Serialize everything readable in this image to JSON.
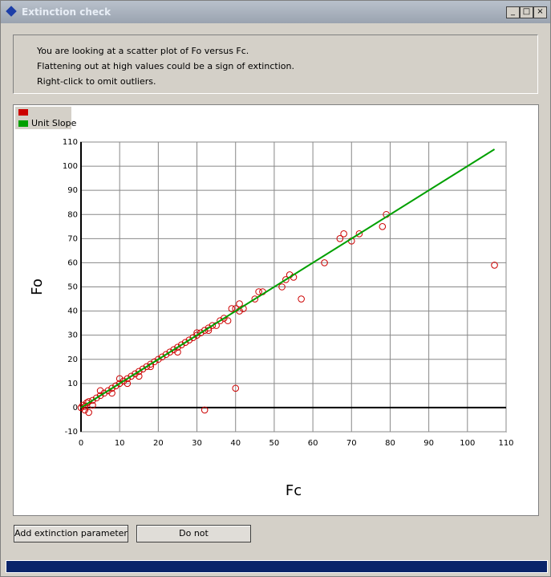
{
  "window": {
    "title": "Extinction check"
  },
  "instructions": [
    "You are looking at a scatter plot of Fo versus Fc.",
    "Flattening out at high values could be a sign of extinction.",
    "Right-click to omit outliers."
  ],
  "chart_data": {
    "type": "scatter",
    "xlabel": "Fc",
    "ylabel": "Fo",
    "xlim": [
      0,
      110
    ],
    "ylim": [
      -10,
      110
    ],
    "xticks": [
      0,
      10,
      20,
      30,
      40,
      50,
      60,
      70,
      80,
      90,
      100,
      110
    ],
    "yticks": [
      -10,
      0,
      10,
      20,
      30,
      40,
      50,
      60,
      70,
      80,
      90,
      100,
      110
    ],
    "grid": true,
    "series": [
      {
        "color": "#cc0000",
        "x": [
          0,
          0.5,
          1,
          1,
          2,
          1.5,
          2,
          3,
          3,
          4,
          5,
          5,
          6,
          7,
          8,
          8,
          9,
          10,
          10,
          11,
          12,
          12,
          13,
          14,
          15,
          15,
          16,
          17,
          18,
          18,
          19,
          20,
          21,
          22,
          23,
          24,
          25,
          25,
          26,
          27,
          28,
          29,
          30,
          30,
          31,
          32,
          33,
          33,
          34,
          35,
          36,
          37,
          38,
          39,
          40,
          41,
          41,
          42,
          45,
          46,
          47,
          52,
          53,
          54,
          55,
          57,
          63,
          67,
          68,
          70,
          72,
          78,
          79,
          107,
          40,
          32
        ],
        "y": [
          0,
          1,
          0.5,
          -1,
          -2,
          2,
          2.5,
          3,
          1,
          4,
          5,
          7,
          6,
          7,
          8,
          6,
          9,
          10,
          12,
          11,
          12,
          10,
          13,
          14,
          15,
          13,
          16,
          17,
          18,
          17,
          19,
          20,
          21,
          22,
          23,
          24,
          25,
          23,
          26,
          27,
          28,
          29,
          30,
          31,
          31,
          32,
          33,
          32,
          34,
          34,
          36,
          37,
          36,
          41,
          41,
          40,
          43,
          41,
          45,
          48,
          48,
          50,
          53,
          55,
          54,
          45,
          60,
          70,
          72,
          69,
          72,
          75,
          80,
          59,
          8,
          -1
        ]
      },
      {
        "type": "line",
        "name": "Unit Slope",
        "color": "#00a000",
        "x": [
          0,
          107
        ],
        "y": [
          0,
          107
        ]
      }
    ]
  },
  "buttons": [
    "Add extinction parameter",
    "Do not"
  ]
}
